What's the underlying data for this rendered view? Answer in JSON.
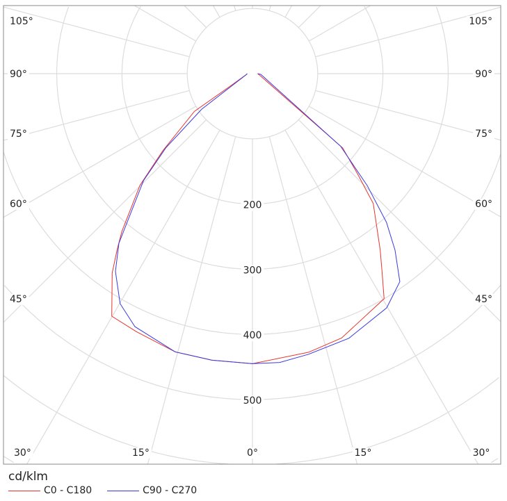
{
  "chart_data": {
    "type": "polar-line",
    "unit_label": "cd/klm",
    "radial_ticks": [
      200,
      300,
      400,
      500
    ],
    "radial_grid": [
      100,
      200,
      300,
      400,
      500,
      600,
      700
    ],
    "angle_grid_step": 15,
    "angle_labels_left": [
      "105°",
      "90°",
      "75°",
      "60°",
      "45°",
      "30°",
      "15°"
    ],
    "angle_labels_bottom": [
      "0°",
      "15°",
      "30°"
    ],
    "angle_labels_right": [
      "105°",
      "90°",
      "75°",
      "60°",
      "45°"
    ],
    "grid": true,
    "legend_position": "bottom-left",
    "angle_convention": "gamma in degrees from nadir; negative = left half, positive = right half",
    "series": [
      {
        "name": "C0 - C180",
        "color": "#e8322a",
        "points": [
          [
            -90,
            8
          ],
          [
            -83,
            9
          ],
          [
            -60,
            44
          ],
          [
            -57,
            106
          ],
          [
            -49.3,
            181
          ],
          [
            -45.2,
            243
          ],
          [
            -39.6,
            314
          ],
          [
            -37.5,
            341
          ],
          [
            -35.1,
            374
          ],
          [
            -30.1,
            430
          ],
          [
            -24.2,
            434
          ],
          [
            -15.5,
            443
          ],
          [
            -8.1,
            444
          ],
          [
            0,
            445
          ],
          [
            11.4,
            436
          ],
          [
            18.6,
            428
          ],
          [
            30.3,
            400
          ],
          [
            33,
            365
          ],
          [
            35.9,
            334
          ],
          [
            42.9,
            272
          ],
          [
            46.4,
            222
          ],
          [
            50.5,
            179
          ],
          [
            79,
            11
          ],
          [
            90,
            8
          ]
        ]
      },
      {
        "name": "C90 - C270",
        "color": "#3a3ae0",
        "points": [
          [
            -90,
            8
          ],
          [
            -83,
            9
          ],
          [
            -59.6,
            36
          ],
          [
            -55,
            95
          ],
          [
            -49.4,
            175
          ],
          [
            -45.5,
            234
          ],
          [
            -38.2,
            331
          ],
          [
            -34.7,
            369
          ],
          [
            -29.9,
            407
          ],
          [
            -24.9,
            428
          ],
          [
            -15.5,
            443
          ],
          [
            -8,
            444
          ],
          [
            0,
            445
          ],
          [
            5.4,
            445
          ],
          [
            11.3,
            439
          ],
          [
            20,
            432
          ],
          [
            29.8,
            414
          ],
          [
            35.3,
            391
          ],
          [
            38.9,
            348
          ],
          [
            42,
            307
          ],
          [
            45.7,
            246
          ],
          [
            50.5,
            175
          ],
          [
            85,
            13
          ],
          [
            90,
            8
          ]
        ]
      }
    ]
  }
}
